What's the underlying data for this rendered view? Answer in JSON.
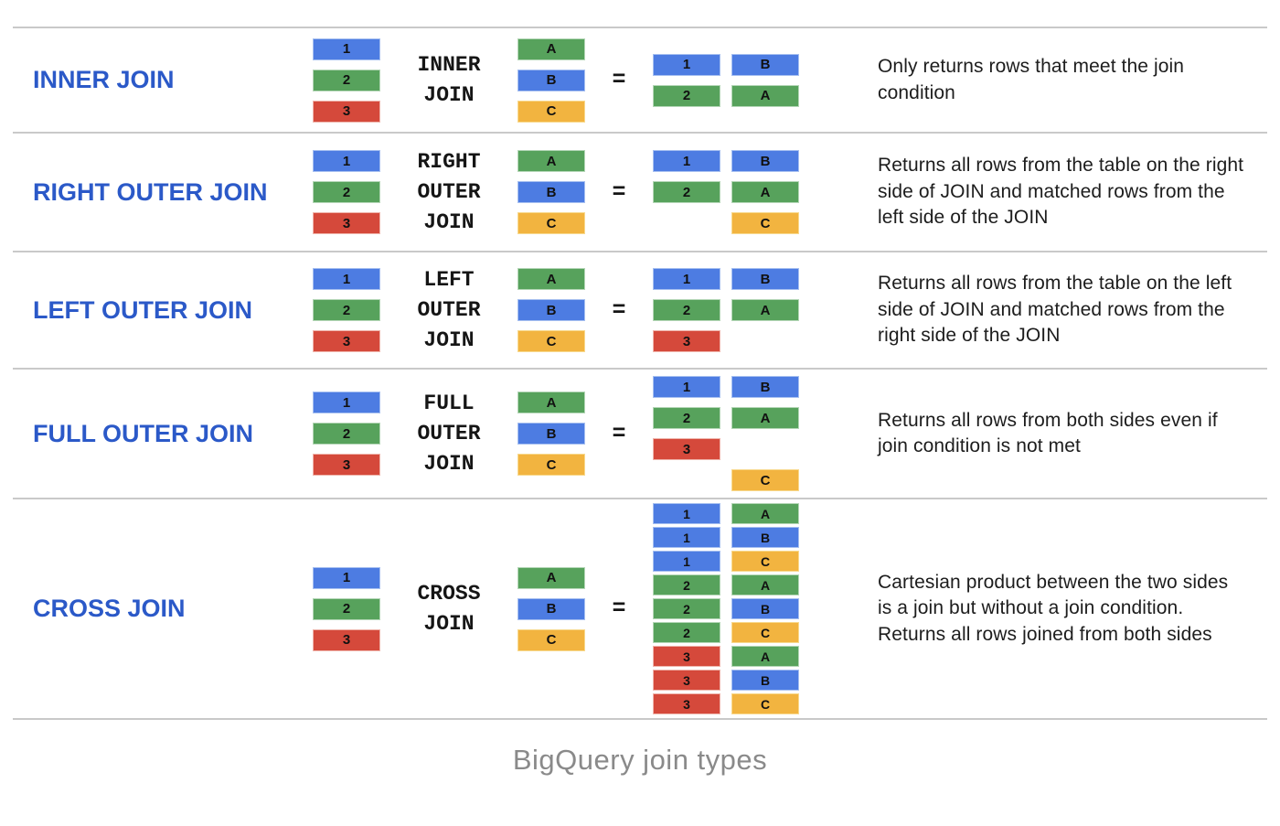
{
  "palette": {
    "blue": "#4d7ce2",
    "green": "#57a25c",
    "red": "#d5493b",
    "yellow": "#f2b440",
    "label_blue": "#2b59c8",
    "divider_gray": "#c9c9c9",
    "body_text": "#1d1d1d",
    "caption_gray": "#8a8a8a"
  },
  "color_map": {
    "1": "blue",
    "2": "green",
    "3": "red",
    "A": "green",
    "B": "blue",
    "C": "yellow"
  },
  "caption": "BigQuery join types",
  "rows": [
    {
      "label": "INNER JOIN",
      "left_table": [
        "1",
        "2",
        "3"
      ],
      "join_label": [
        "INNER",
        "JOIN"
      ],
      "right_table": [
        "A",
        "B",
        "C"
      ],
      "equals": "=",
      "result": [
        [
          "1",
          "B"
        ],
        [
          "2",
          "A"
        ]
      ],
      "description": "Only returns rows that meet the join condition"
    },
    {
      "label": "RIGHT OUTER JOIN",
      "left_table": [
        "1",
        "2",
        "3"
      ],
      "join_label": [
        "RIGHT",
        "OUTER",
        "JOIN"
      ],
      "right_table": [
        "A",
        "B",
        "C"
      ],
      "equals": "=",
      "result": [
        [
          "1",
          "B"
        ],
        [
          "2",
          "A"
        ],
        [
          null,
          "C"
        ]
      ],
      "description": "Returns all rows from the table on the right side of JOIN and matched rows from the left side of the JOIN"
    },
    {
      "label": "LEFT OUTER JOIN",
      "left_table": [
        "1",
        "2",
        "3"
      ],
      "join_label": [
        "LEFT",
        "OUTER",
        "JOIN"
      ],
      "right_table": [
        "A",
        "B",
        "C"
      ],
      "equals": "=",
      "result": [
        [
          "1",
          "B"
        ],
        [
          "2",
          "A"
        ],
        [
          "3",
          null
        ]
      ],
      "description": "Returns all rows from the table on the left side of JOIN and matched rows from the right side of the JOIN"
    },
    {
      "label": "FULL OUTER JOIN",
      "left_table": [
        "1",
        "2",
        "3"
      ],
      "join_label": [
        "FULL",
        "OUTER",
        "JOIN"
      ],
      "right_table": [
        "A",
        "B",
        "C"
      ],
      "equals": "=",
      "result": [
        [
          "1",
          "B"
        ],
        [
          "2",
          "A"
        ],
        [
          "3",
          null
        ],
        [
          null,
          "C"
        ]
      ],
      "description": "Returns all rows from both sides even if join condition is not met"
    },
    {
      "label": "CROSS JOIN",
      "left_table": [
        "1",
        "2",
        "3"
      ],
      "join_label": [
        "CROSS",
        "JOIN"
      ],
      "right_table": [
        "A",
        "B",
        "C"
      ],
      "equals": "=",
      "result": [
        [
          "1",
          "A"
        ],
        [
          "1",
          "B"
        ],
        [
          "1",
          "C"
        ],
        [
          "2",
          "A"
        ],
        [
          "2",
          "B"
        ],
        [
          "2",
          "C"
        ],
        [
          "3",
          "A"
        ],
        [
          "3",
          "B"
        ],
        [
          "3",
          "C"
        ]
      ],
      "description": "Cartesian product between the two sides is a join but without a join condition. Returns all rows joined from both sides"
    }
  ]
}
